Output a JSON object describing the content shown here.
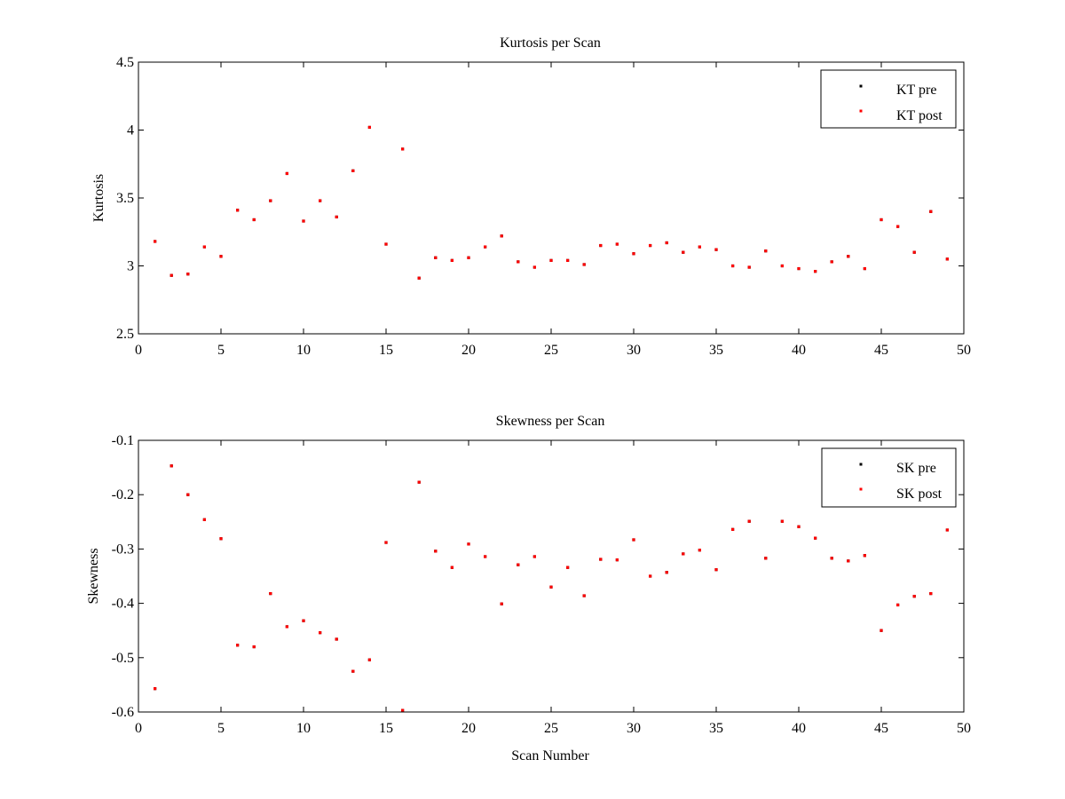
{
  "colors": {
    "background": "#ffffff",
    "axes": "#000000",
    "pre": "#000000",
    "post": "#ff0000"
  },
  "chart_data": [
    {
      "type": "scatter",
      "title": "Kurtosis per Scan",
      "xlabel": "",
      "ylabel": "Kurtosis",
      "xlim": [
        0,
        50
      ],
      "ylim": [
        2.5,
        4.5
      ],
      "xticks": [
        "0",
        "5",
        "10",
        "15",
        "20",
        "25",
        "30",
        "35",
        "40",
        "45",
        "50"
      ],
      "yticks": [
        "2.5",
        "3",
        "3.5",
        "4",
        "4.5"
      ],
      "grid": false,
      "legend_position": "top-right",
      "x": [
        1,
        2,
        3,
        4,
        5,
        6,
        7,
        8,
        9,
        10,
        11,
        12,
        13,
        14,
        15,
        16,
        17,
        18,
        19,
        20,
        21,
        22,
        23,
        24,
        25,
        26,
        27,
        28,
        29,
        30,
        31,
        32,
        33,
        34,
        35,
        36,
        37,
        38,
        39,
        40,
        41,
        42,
        43,
        44,
        45,
        46,
        47,
        48,
        49
      ],
      "series": [
        {
          "name": "KT pre",
          "color": "#000000",
          "values": [
            3.18,
            2.93,
            2.94,
            3.14,
            3.07,
            3.41,
            3.34,
            3.48,
            3.68,
            3.33,
            3.48,
            3.36,
            3.7,
            4.02,
            3.16,
            3.86,
            2.91,
            3.06,
            3.04,
            3.06,
            3.14,
            3.22,
            3.03,
            2.99,
            3.04,
            3.04,
            3.01,
            3.15,
            3.16,
            3.09,
            3.15,
            3.17,
            3.1,
            3.14,
            3.12,
            3.0,
            2.99,
            3.11,
            3.0,
            2.98,
            2.96,
            3.03,
            3.07,
            2.98,
            3.34,
            3.29,
            3.1,
            3.4,
            3.05
          ]
        },
        {
          "name": "KT post",
          "color": "#ff0000",
          "values": [
            3.18,
            2.93,
            2.94,
            3.14,
            3.07,
            3.41,
            3.34,
            3.48,
            3.68,
            3.33,
            3.48,
            3.36,
            3.7,
            4.02,
            3.16,
            3.86,
            2.91,
            3.06,
            3.04,
            3.06,
            3.14,
            3.22,
            3.03,
            2.99,
            3.04,
            3.04,
            3.01,
            3.15,
            3.16,
            3.09,
            3.15,
            3.17,
            3.1,
            3.14,
            3.12,
            3.0,
            2.99,
            3.11,
            3.0,
            2.98,
            2.96,
            3.03,
            3.07,
            2.98,
            3.34,
            3.29,
            3.1,
            3.4,
            3.05
          ]
        }
      ]
    },
    {
      "type": "scatter",
      "title": "Skewness per Scan",
      "xlabel": "Scan Number",
      "ylabel": "Skewness",
      "xlim": [
        0,
        50
      ],
      "ylim": [
        -0.6,
        -0.1
      ],
      "xticks": [
        "0",
        "5",
        "10",
        "15",
        "20",
        "25",
        "30",
        "35",
        "40",
        "45",
        "50"
      ],
      "yticks": [
        "-0.6",
        "-0.5",
        "-0.4",
        "-0.3",
        "-0.2",
        "-0.1"
      ],
      "grid": false,
      "legend_position": "top-right",
      "x": [
        1,
        2,
        3,
        4,
        5,
        6,
        7,
        8,
        9,
        10,
        11,
        12,
        13,
        14,
        15,
        16,
        17,
        18,
        19,
        20,
        21,
        22,
        23,
        24,
        25,
        26,
        27,
        28,
        29,
        30,
        31,
        32,
        33,
        34,
        35,
        36,
        37,
        38,
        39,
        40,
        41,
        42,
        43,
        44,
        45,
        46,
        47,
        48,
        49
      ],
      "series": [
        {
          "name": "SK pre",
          "color": "#000000",
          "values": [
            -0.557,
            -0.147,
            -0.2,
            -0.246,
            -0.281,
            -0.477,
            -0.48,
            -0.382,
            -0.443,
            -0.432,
            -0.454,
            -0.466,
            -0.525,
            -0.504,
            -0.288,
            -0.597,
            -0.177,
            -0.304,
            -0.334,
            -0.291,
            -0.314,
            -0.401,
            -0.329,
            -0.314,
            -0.37,
            -0.334,
            -0.386,
            -0.319,
            -0.32,
            -0.283,
            -0.35,
            -0.343,
            -0.309,
            -0.302,
            -0.338,
            -0.264,
            -0.249,
            -0.317,
            -0.249,
            -0.259,
            -0.28,
            -0.317,
            -0.322,
            -0.312,
            -0.45,
            -0.403,
            -0.387,
            -0.382,
            -0.265
          ]
        },
        {
          "name": "SK post",
          "color": "#ff0000",
          "values": [
            -0.557,
            -0.147,
            -0.2,
            -0.246,
            -0.281,
            -0.477,
            -0.48,
            -0.382,
            -0.443,
            -0.432,
            -0.454,
            -0.466,
            -0.525,
            -0.504,
            -0.288,
            -0.597,
            -0.177,
            -0.304,
            -0.334,
            -0.291,
            -0.314,
            -0.401,
            -0.329,
            -0.314,
            -0.37,
            -0.334,
            -0.386,
            -0.319,
            -0.32,
            -0.283,
            -0.35,
            -0.343,
            -0.309,
            -0.302,
            -0.338,
            -0.264,
            -0.249,
            -0.317,
            -0.249,
            -0.259,
            -0.28,
            -0.317,
            -0.322,
            -0.312,
            -0.45,
            -0.403,
            -0.387,
            -0.382,
            -0.265
          ]
        }
      ]
    }
  ]
}
